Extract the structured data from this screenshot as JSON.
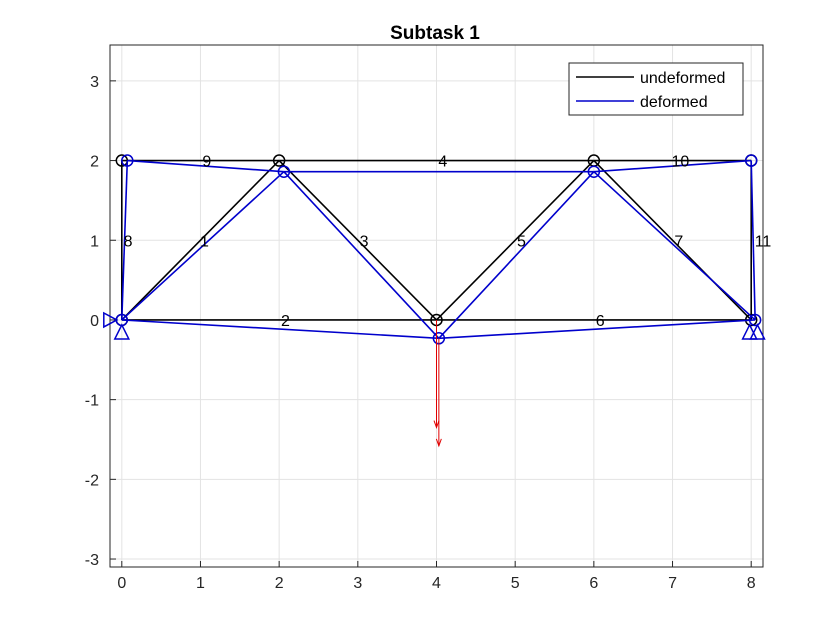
{
  "chart_data": {
    "type": "line",
    "title": "Subtask 1",
    "xlabel": "",
    "ylabel": "",
    "xlim": [
      -0.15,
      8.15
    ],
    "ylim": [
      -3.1,
      3.45
    ],
    "xticks": [
      0,
      1,
      2,
      3,
      4,
      5,
      6,
      7,
      8
    ],
    "yticks": [
      -3,
      -2,
      -1,
      0,
      1,
      2,
      3
    ],
    "xtick_labels": [
      "0",
      "1",
      "2",
      "3",
      "4",
      "5",
      "6",
      "7",
      "8"
    ],
    "ytick_labels": [
      "-3",
      "-2",
      "-1",
      "0",
      "1",
      "2",
      "3"
    ],
    "grid": true,
    "legend_position": "top-right",
    "series": [
      {
        "name": "undeformed",
        "color": "#000000",
        "nodes": [
          [
            0,
            0
          ],
          [
            2,
            2
          ],
          [
            4,
            0
          ],
          [
            6,
            2
          ],
          [
            8,
            0
          ],
          [
            0,
            2
          ],
          [
            8,
            2
          ]
        ],
        "elements": [
          {
            "label": "1",
            "nodes": [
              0,
              1
            ]
          },
          {
            "label": "2",
            "nodes": [
              0,
              2
            ]
          },
          {
            "label": "3",
            "nodes": [
              1,
              2
            ]
          },
          {
            "label": "4",
            "nodes": [
              1,
              3
            ]
          },
          {
            "label": "5",
            "nodes": [
              2,
              3
            ]
          },
          {
            "label": "6",
            "nodes": [
              2,
              4
            ]
          },
          {
            "label": "7",
            "nodes": [
              3,
              4
            ]
          },
          {
            "label": "8",
            "nodes": [
              0,
              5
            ]
          },
          {
            "label": "9",
            "nodes": [
              5,
              1
            ]
          },
          {
            "label": "10",
            "nodes": [
              3,
              6
            ]
          },
          {
            "label": "11",
            "nodes": [
              4,
              6
            ]
          }
        ]
      },
      {
        "name": "deformed",
        "color": "#0000cc",
        "nodes": [
          [
            0,
            0
          ],
          [
            2.06,
            1.86
          ],
          [
            4.03,
            -0.23
          ],
          [
            6,
            1.86
          ],
          [
            8.05,
            0
          ],
          [
            0.07,
            2
          ],
          [
            8,
            2
          ]
        ]
      }
    ],
    "element_labels": [
      {
        "text": "1",
        "x": 1.05,
        "y": 1.0
      },
      {
        "text": "2",
        "x": 2.08,
        "y": 0.0
      },
      {
        "text": "3",
        "x": 3.08,
        "y": 1.0
      },
      {
        "text": "4",
        "x": 4.08,
        "y": 2.0
      },
      {
        "text": "5",
        "x": 5.08,
        "y": 1.0
      },
      {
        "text": "6",
        "x": 6.08,
        "y": 0.0
      },
      {
        "text": "7",
        "x": 7.08,
        "y": 1.0
      },
      {
        "text": "8",
        "x": 0.08,
        "y": 1.0
      },
      {
        "text": "9",
        "x": 1.08,
        "y": 2.0
      },
      {
        "text": "10",
        "x": 7.1,
        "y": 2.0
      },
      {
        "text": "11",
        "x": 8.15,
        "y": 1.0
      }
    ],
    "supports": [
      {
        "type": "pin-vertical",
        "x": 0,
        "y": 0
      },
      {
        "type": "pin-horizontal",
        "x": 0,
        "y": 0
      },
      {
        "type": "pin-vertical",
        "x": 7.98,
        "y": 0
      },
      {
        "type": "pin-vertical",
        "x": 8.08,
        "y": 0
      }
    ],
    "loads": [
      {
        "x": 4.0,
        "y_from": 0.0,
        "y_to": -1.35,
        "color": "#e00000"
      },
      {
        "x": 4.03,
        "y_from": -0.23,
        "y_to": -1.58,
        "color": "#e00000"
      }
    ]
  }
}
